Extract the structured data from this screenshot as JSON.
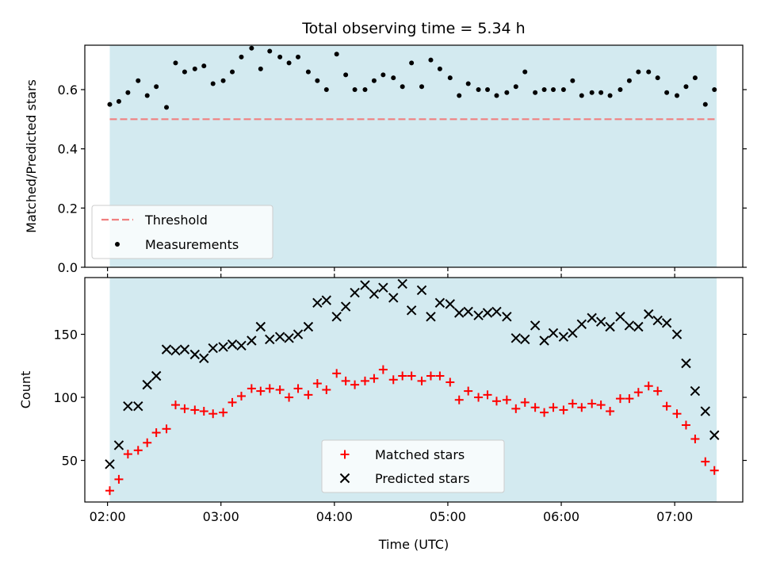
{
  "chart_data": [
    {
      "type": "scatter",
      "title": "Total observing time = 5.34 h",
      "xlabel": "",
      "ylabel": "Matched/Predicted stars",
      "xlim": [
        1.8,
        7.6
      ],
      "ylim": [
        0.0,
        0.75
      ],
      "x_ticks": [
        2,
        3,
        4,
        5,
        6,
        7
      ],
      "x_tick_labels_shown": false,
      "y_ticks": [
        0.0,
        0.2,
        0.4,
        0.6
      ],
      "y_tick_labels": [
        "0.0",
        "0.2",
        "0.4",
        "0.6"
      ],
      "observing_window": [
        2.02,
        7.37
      ],
      "observing_window_color": "#d3eaf0",
      "legend_position": "lower left",
      "threshold": {
        "name": "Threshold",
        "value": 0.5,
        "color": "#f08080",
        "style": "dashed"
      },
      "series": [
        {
          "name": "Measurements",
          "color": "#000000",
          "marker": "dot",
          "x": [
            2.02,
            2.1,
            2.18,
            2.27,
            2.35,
            2.43,
            2.52,
            2.6,
            2.68,
            2.77,
            2.85,
            2.93,
            3.02,
            3.1,
            3.18,
            3.27,
            3.35,
            3.43,
            3.52,
            3.6,
            3.68,
            3.77,
            3.85,
            3.93,
            4.02,
            4.1,
            4.18,
            4.27,
            4.35,
            4.43,
            4.52,
            4.6,
            4.68,
            4.77,
            4.85,
            4.93,
            5.02,
            5.1,
            5.18,
            5.27,
            5.35,
            5.43,
            5.52,
            5.6,
            5.68,
            5.77,
            5.85,
            5.93,
            6.02,
            6.1,
            6.18,
            6.27,
            6.35,
            6.43,
            6.52,
            6.6,
            6.68,
            6.77,
            6.85,
            6.93,
            7.02,
            7.1,
            7.18,
            7.27,
            7.35
          ],
          "y": [
            0.55,
            0.56,
            0.59,
            0.63,
            0.58,
            0.61,
            0.54,
            0.69,
            0.66,
            0.67,
            0.68,
            0.62,
            0.63,
            0.66,
            0.71,
            0.74,
            0.67,
            0.73,
            0.71,
            0.69,
            0.71,
            0.66,
            0.63,
            0.6,
            0.72,
            0.65,
            0.6,
            0.6,
            0.63,
            0.65,
            0.64,
            0.61,
            0.69,
            0.61,
            0.7,
            0.67,
            0.64,
            0.58,
            0.62,
            0.6,
            0.6,
            0.58,
            0.59,
            0.61,
            0.66,
            0.59,
            0.6,
            0.6,
            0.6,
            0.63,
            0.58,
            0.59,
            0.59,
            0.58,
            0.6,
            0.63,
            0.66,
            0.66,
            0.64,
            0.59,
            0.58,
            0.61,
            0.64,
            0.55,
            0.6
          ]
        }
      ]
    },
    {
      "type": "scatter",
      "title": "",
      "xlabel": "Time (UTC)",
      "ylabel": "Count",
      "xlim": [
        1.8,
        7.6
      ],
      "ylim": [
        17,
        195
      ],
      "x_ticks": [
        2,
        3,
        4,
        5,
        6,
        7
      ],
      "x_tick_labels": [
        "02:00",
        "03:00",
        "04:00",
        "05:00",
        "06:00",
        "07:00"
      ],
      "y_ticks": [
        50,
        100,
        150
      ],
      "y_tick_labels": [
        "50",
        "100",
        "150"
      ],
      "observing_window": [
        2.02,
        7.37
      ],
      "observing_window_color": "#d3eaf0",
      "legend_position": "lower center",
      "series": [
        {
          "name": "Matched stars",
          "color": "#ff0000",
          "marker": "plus",
          "x": [
            2.02,
            2.1,
            2.18,
            2.27,
            2.35,
            2.43,
            2.52,
            2.6,
            2.68,
            2.77,
            2.85,
            2.93,
            3.02,
            3.1,
            3.18,
            3.27,
            3.35,
            3.43,
            3.52,
            3.6,
            3.68,
            3.77,
            3.85,
            3.93,
            4.02,
            4.1,
            4.18,
            4.27,
            4.35,
            4.43,
            4.52,
            4.6,
            4.68,
            4.77,
            4.85,
            4.93,
            5.02,
            5.1,
            5.18,
            5.27,
            5.35,
            5.43,
            5.52,
            5.6,
            5.68,
            5.77,
            5.85,
            5.93,
            6.02,
            6.1,
            6.18,
            6.27,
            6.35,
            6.43,
            6.52,
            6.6,
            6.68,
            6.77,
            6.85,
            6.93,
            7.02,
            7.1,
            7.18,
            7.27,
            7.35
          ],
          "y": [
            26,
            35,
            55,
            58,
            64,
            72,
            75,
            94,
            91,
            90,
            89,
            87,
            88,
            96,
            101,
            107,
            105,
            107,
            106,
            100,
            107,
            102,
            111,
            106,
            119,
            113,
            110,
            113,
            115,
            122,
            114,
            117,
            117,
            113,
            117,
            117,
            112,
            98,
            105,
            100,
            102,
            97,
            98,
            91,
            96,
            92,
            88,
            92,
            90,
            95,
            92,
            95,
            94,
            89,
            99,
            99,
            104,
            109,
            105,
            93,
            87,
            78,
            67,
            49,
            42
          ]
        },
        {
          "name": "Predicted stars",
          "color": "#000000",
          "marker": "x",
          "x": [
            2.02,
            2.1,
            2.18,
            2.27,
            2.35,
            2.43,
            2.52,
            2.6,
            2.68,
            2.77,
            2.85,
            2.93,
            3.02,
            3.1,
            3.18,
            3.27,
            3.35,
            3.43,
            3.52,
            3.6,
            3.68,
            3.77,
            3.85,
            3.93,
            4.02,
            4.1,
            4.18,
            4.27,
            4.35,
            4.43,
            4.52,
            4.6,
            4.68,
            4.77,
            4.85,
            4.93,
            5.02,
            5.1,
            5.18,
            5.27,
            5.35,
            5.43,
            5.52,
            5.6,
            5.68,
            5.77,
            5.85,
            5.93,
            6.02,
            6.1,
            6.18,
            6.27,
            6.35,
            6.43,
            6.52,
            6.6,
            6.68,
            6.77,
            6.85,
            6.93,
            7.02,
            7.1,
            7.18,
            7.27,
            7.35
          ],
          "y": [
            47,
            62,
            93,
            93,
            110,
            117,
            138,
            137,
            138,
            134,
            131,
            139,
            140,
            142,
            141,
            145,
            156,
            146,
            148,
            147,
            150,
            156,
            175,
            177,
            164,
            172,
            183,
            189,
            182,
            187,
            179,
            190,
            169,
            185,
            164,
            175,
            174,
            167,
            168,
            165,
            167,
            168,
            164,
            147,
            146,
            157,
            145,
            151,
            148,
            151,
            158,
            163,
            160,
            156,
            164,
            157,
            156,
            166,
            161,
            159,
            150,
            127,
            105,
            89,
            70
          ]
        }
      ]
    }
  ]
}
